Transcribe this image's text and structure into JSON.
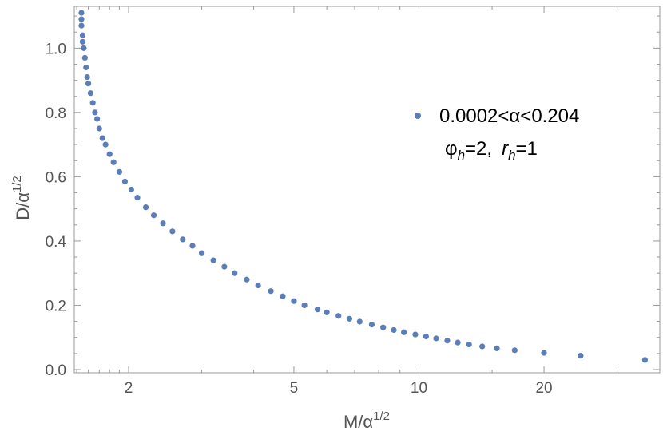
{
  "chart_data": {
    "type": "scatter",
    "x_scale": "log",
    "y_scale": "linear",
    "xlabel": "M/α",
    "xlabel_sup": "1/2",
    "ylabel": "D/α",
    "ylabel_sup": "1/2",
    "xlim": [
      1.48,
      38
    ],
    "ylim": [
      -0.01,
      1.13
    ],
    "x_ticks": [
      {
        "value": 2,
        "label": "2"
      },
      {
        "value": 5,
        "label": "5"
      },
      {
        "value": 10,
        "label": "10"
      },
      {
        "value": 20,
        "label": "20"
      }
    ],
    "y_ticks": [
      {
        "value": 0.0,
        "label": "0.0"
      },
      {
        "value": 0.2,
        "label": "0.2"
      },
      {
        "value": 0.4,
        "label": "0.4"
      },
      {
        "value": 0.6,
        "label": "0.6"
      },
      {
        "value": 0.8,
        "label": "0.8"
      },
      {
        "value": 1.0,
        "label": "1.0"
      }
    ],
    "legend": {
      "position": "top-right",
      "series_label": "0.0002<α<0.204",
      "params": [
        {
          "symbol": "φ",
          "subscript": "h",
          "value": "=2,"
        },
        {
          "symbol": "r",
          "subscript": "h",
          "value": "=1"
        }
      ]
    },
    "series": [
      {
        "name": "0.0002<α<0.204",
        "color": "#5b7db8",
        "x": [
          1.54,
          1.54,
          1.54,
          1.55,
          1.55,
          1.56,
          1.57,
          1.58,
          1.59,
          1.6,
          1.62,
          1.64,
          1.66,
          1.68,
          1.7,
          1.73,
          1.76,
          1.8,
          1.84,
          1.9,
          1.96,
          2.03,
          2.1,
          2.2,
          2.3,
          2.42,
          2.55,
          2.7,
          2.85,
          3.0,
          3.2,
          3.4,
          3.6,
          3.85,
          4.1,
          4.4,
          4.7,
          5.0,
          5.3,
          5.7,
          6.0,
          6.4,
          6.8,
          7.2,
          7.7,
          8.2,
          8.7,
          9.2,
          9.8,
          10.4,
          11.0,
          11.7,
          12.4,
          13.2,
          14.2,
          15.4,
          17.0,
          20.0,
          24.5,
          35.0
        ],
        "y": [
          1.11,
          1.09,
          1.07,
          1.04,
          1.02,
          1.0,
          0.97,
          0.94,
          0.91,
          0.89,
          0.86,
          0.83,
          0.8,
          0.78,
          0.75,
          0.72,
          0.7,
          0.67,
          0.645,
          0.615,
          0.585,
          0.56,
          0.535,
          0.505,
          0.48,
          0.455,
          0.43,
          0.405,
          0.385,
          0.362,
          0.34,
          0.32,
          0.3,
          0.28,
          0.262,
          0.244,
          0.228,
          0.213,
          0.2,
          0.187,
          0.178,
          0.167,
          0.158,
          0.149,
          0.14,
          0.131,
          0.123,
          0.116,
          0.109,
          0.103,
          0.097,
          0.09,
          0.084,
          0.078,
          0.072,
          0.066,
          0.06,
          0.052,
          0.043,
          0.03
        ]
      }
    ]
  }
}
